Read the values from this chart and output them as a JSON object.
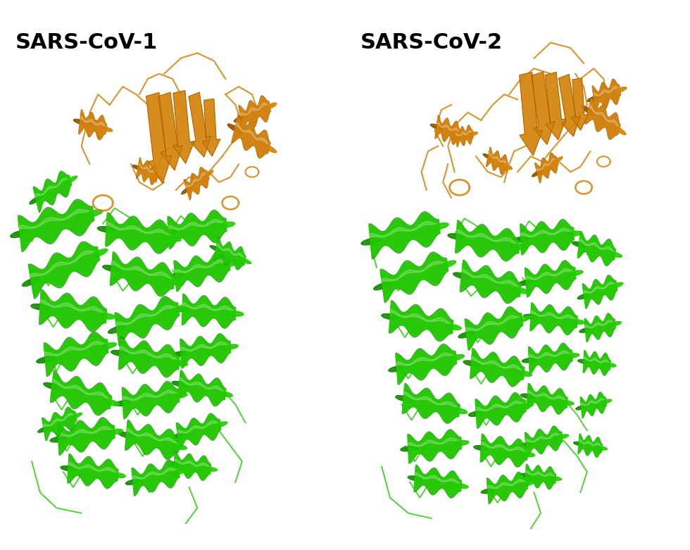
{
  "title_left": "SARS-CoV-1",
  "title_right": "SARS-CoV-2",
  "title_fontsize": 22,
  "title_fontweight": "bold",
  "background_color": "#ffffff",
  "orange": "#D4820A",
  "orange_dark": "#8B5000",
  "orange_light": "#F0A030",
  "green": "#22CC00",
  "green_dark": "#118800",
  "green_light": "#44EE22",
  "fig_width": 9.8,
  "fig_height": 7.81,
  "dpi": 100
}
